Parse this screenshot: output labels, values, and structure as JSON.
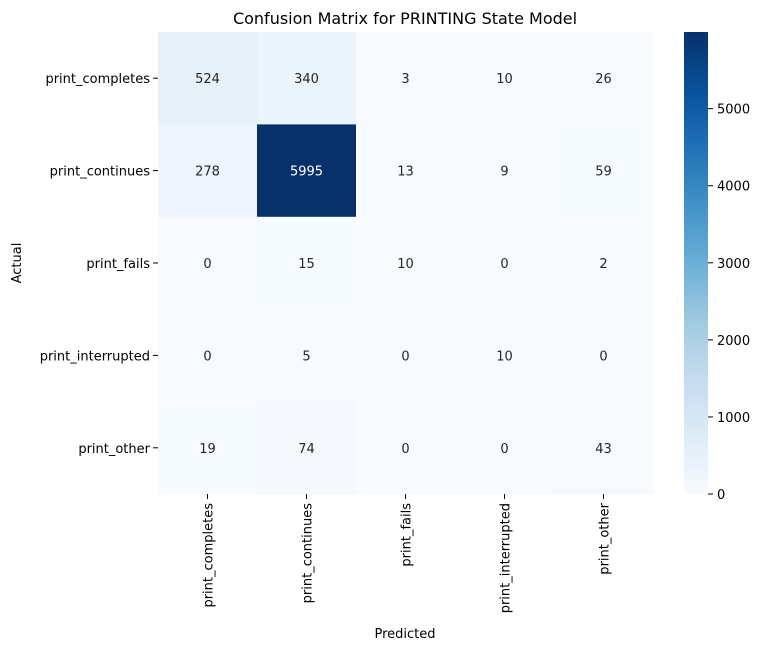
{
  "chart_data": {
    "type": "heatmap",
    "title": "Confusion Matrix for PRINTING State Model",
    "xlabel": "Predicted",
    "ylabel": "Actual",
    "x_categories": [
      "print_completes",
      "print_continues",
      "print_fails",
      "print_interrupted",
      "print_other"
    ],
    "y_categories": [
      "print_completes",
      "print_continues",
      "print_fails",
      "print_interrupted",
      "print_other"
    ],
    "values": [
      [
        524,
        340,
        3,
        10,
        26
      ],
      [
        278,
        5995,
        13,
        9,
        59
      ],
      [
        0,
        15,
        10,
        0,
        2
      ],
      [
        0,
        5,
        0,
        10,
        0
      ],
      [
        19,
        74,
        0,
        0,
        43
      ]
    ],
    "colormap": "Blues",
    "colorbar": {
      "range": [
        0,
        5995
      ],
      "ticks": [
        0,
        1000,
        2000,
        3000,
        4000,
        5000
      ]
    },
    "annotations": true,
    "grid": false
  }
}
